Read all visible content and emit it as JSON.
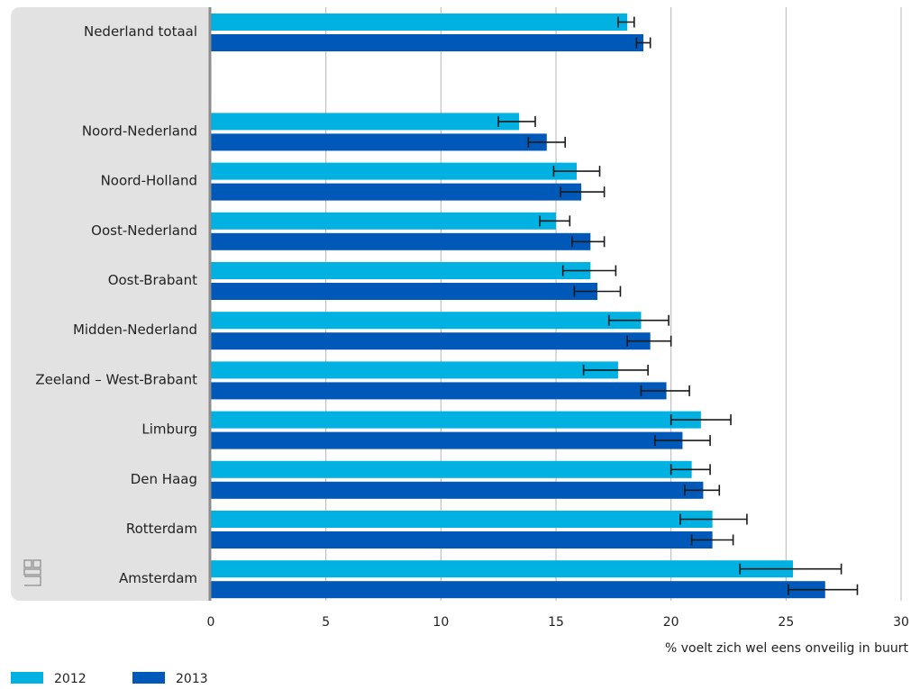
{
  "chart_data": {
    "type": "bar",
    "orientation": "horizontal",
    "categories": [
      "Nederland totaal",
      "",
      "Noord-Nederland",
      "Noord-Holland",
      "Oost-Nederland",
      "Oost-Brabant",
      "Midden-Nederland",
      "Zeeland – West-Brabant",
      "Limburg",
      "Den Haag",
      "Rotterdam",
      "Amsterdam"
    ],
    "series": [
      {
        "name": "2012",
        "color": "#00b1e1",
        "values": [
          18.1,
          null,
          13.4,
          15.9,
          15.0,
          16.5,
          18.7,
          17.7,
          21.3,
          20.9,
          21.8,
          25.3
        ],
        "error_low": [
          17.7,
          null,
          12.5,
          14.9,
          14.3,
          15.3,
          17.3,
          16.2,
          20.0,
          20.0,
          20.4,
          23.0
        ],
        "error_high": [
          18.4,
          null,
          14.1,
          16.9,
          15.6,
          17.6,
          19.9,
          19.0,
          22.6,
          21.7,
          23.3,
          27.4
        ]
      },
      {
        "name": "2013",
        "color": "#0058b8",
        "values": [
          18.8,
          null,
          14.6,
          16.1,
          16.5,
          16.8,
          19.1,
          19.8,
          20.5,
          21.4,
          21.8,
          26.7
        ],
        "error_low": [
          18.5,
          null,
          13.8,
          15.2,
          15.7,
          15.8,
          18.1,
          18.7,
          19.3,
          20.6,
          20.9,
          25.1
        ],
        "error_high": [
          19.1,
          null,
          15.4,
          17.1,
          17.1,
          17.8,
          20.0,
          20.8,
          21.7,
          22.1,
          22.7,
          28.1
        ]
      }
    ],
    "xlabel": "% voelt zich wel eens onveilig in buurt",
    "xlim": [
      0,
      30
    ],
    "xticks": [
      "0",
      "5",
      "10",
      "15",
      "20",
      "25",
      "30"
    ],
    "grid": "vertical",
    "legend": "bottom-left"
  },
  "colors": {
    "panel": "#e2e2e2",
    "axis": "#8c8c8c",
    "grid": "#b5b5b5",
    "error_bar": "#1a1a1a"
  },
  "logo_icon": "cbs-logo-icon"
}
